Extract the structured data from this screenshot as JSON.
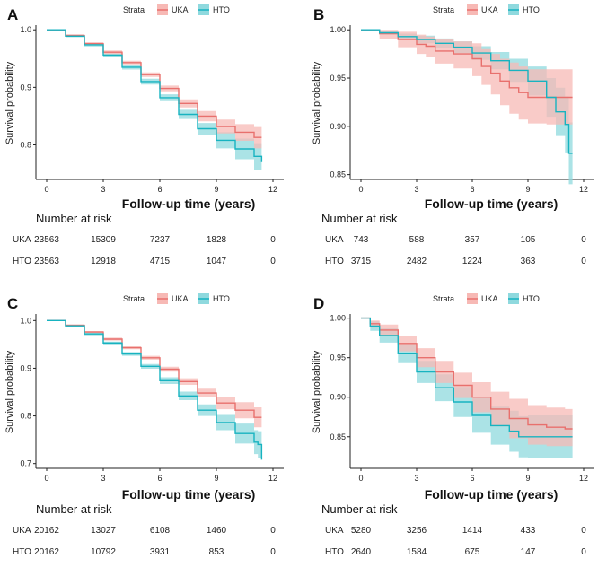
{
  "colors": {
    "uka": "#e8706d",
    "hto": "#17b3c0",
    "uka_band": "#f7b9b5",
    "hto_band": "#8fd9de"
  },
  "legend": {
    "title": "Strata",
    "uka": "UKA",
    "hto": "HTO"
  },
  "risk_table": {
    "title": "Number at risk"
  },
  "chart_data": [
    {
      "panel": "A",
      "type": "line",
      "title": "",
      "xlabel": "Follow-up time (years)",
      "ylabel": "Survival probability",
      "xlim": [
        0,
        12
      ],
      "ylim": [
        0.74,
        1.005
      ],
      "xticks": [
        "0",
        "3",
        "6",
        "9",
        "12"
      ],
      "yticks": [
        "0.8",
        "0.9",
        "1.0"
      ],
      "series": [
        {
          "name": "UKA",
          "x": [
            0,
            1,
            2,
            3,
            4,
            5,
            6,
            7,
            8,
            9,
            10,
            11,
            11.4
          ],
          "y": [
            1.0,
            0.99,
            0.976,
            0.961,
            0.943,
            0.922,
            0.898,
            0.872,
            0.85,
            0.832,
            0.822,
            0.813,
            0.813
          ],
          "lower": [
            1.0,
            0.988,
            0.974,
            0.958,
            0.94,
            0.918,
            0.893,
            0.865,
            0.841,
            0.82,
            0.807,
            0.794,
            0.792
          ],
          "upper": [
            1.0,
            0.992,
            0.978,
            0.964,
            0.946,
            0.926,
            0.903,
            0.879,
            0.859,
            0.844,
            0.836,
            0.831,
            0.832
          ]
        },
        {
          "name": "HTO",
          "x": [
            0,
            1,
            2,
            3,
            4,
            5,
            6,
            7,
            8,
            9,
            10,
            11,
            11.4
          ],
          "y": [
            1.0,
            0.989,
            0.974,
            0.956,
            0.935,
            0.91,
            0.882,
            0.853,
            0.828,
            0.808,
            0.793,
            0.78,
            0.77
          ],
          "lower": [
            1.0,
            0.987,
            0.971,
            0.953,
            0.931,
            0.905,
            0.876,
            0.845,
            0.818,
            0.794,
            0.775,
            0.757,
            0.745
          ],
          "upper": [
            1.0,
            0.991,
            0.977,
            0.959,
            0.939,
            0.915,
            0.888,
            0.861,
            0.838,
            0.822,
            0.811,
            0.803,
            0.796
          ]
        }
      ],
      "risk": {
        "UKA": [
          "23563",
          "15309",
          "7237",
          "1828",
          "0"
        ],
        "HTO": [
          "23563",
          "12918",
          "4715",
          "1047",
          "0"
        ]
      }
    },
    {
      "panel": "B",
      "type": "line",
      "title": "",
      "xlabel": "Follow-up time (years)",
      "ylabel": "Survival probability",
      "xlim": [
        0,
        12
      ],
      "ylim": [
        0.845,
        1.003
      ],
      "xticks": [
        "0",
        "3",
        "6",
        "9",
        "12"
      ],
      "yticks": [
        "0.85",
        "0.90",
        "0.95",
        "1.00"
      ],
      "series": [
        {
          "name": "UKA",
          "x": [
            0,
            1,
            2,
            3,
            3.5,
            4,
            5,
            6,
            6.5,
            7,
            7.5,
            8,
            8.5,
            9,
            10,
            11,
            11.4
          ],
          "y": [
            1.0,
            0.996,
            0.99,
            0.985,
            0.983,
            0.978,
            0.975,
            0.97,
            0.962,
            0.955,
            0.947,
            0.94,
            0.935,
            0.93,
            0.93,
            0.93,
            0.93
          ],
          "lower": [
            1.0,
            0.99,
            0.982,
            0.975,
            0.972,
            0.965,
            0.96,
            0.952,
            0.943,
            0.933,
            0.922,
            0.913,
            0.907,
            0.903,
            0.902,
            0.902,
            0.902
          ],
          "upper": [
            1.0,
            1.0,
            0.998,
            0.995,
            0.993,
            0.99,
            0.988,
            0.986,
            0.98,
            0.975,
            0.97,
            0.966,
            0.962,
            0.959,
            0.959,
            0.959,
            0.959
          ]
        },
        {
          "name": "HTO",
          "x": [
            0,
            1,
            2,
            3,
            4,
            5,
            6,
            7,
            8,
            9,
            10,
            10.5,
            11,
            11.2,
            11.4
          ],
          "y": [
            1.0,
            0.997,
            0.993,
            0.99,
            0.986,
            0.982,
            0.976,
            0.968,
            0.958,
            0.947,
            0.93,
            0.915,
            0.902,
            0.872,
            0.872
          ],
          "lower": [
            1.0,
            0.995,
            0.99,
            0.986,
            0.981,
            0.976,
            0.969,
            0.959,
            0.946,
            0.932,
            0.91,
            0.89,
            0.873,
            0.84,
            0.84
          ],
          "upper": [
            1.0,
            0.999,
            0.996,
            0.994,
            0.991,
            0.988,
            0.983,
            0.977,
            0.97,
            0.962,
            0.95,
            0.94,
            0.931,
            0.904,
            0.904
          ]
        }
      ],
      "risk": {
        "UKA": [
          "743",
          "588",
          "357",
          "105",
          "0"
        ],
        "HTO": [
          "3715",
          "2482",
          "1224",
          "363",
          "0"
        ]
      }
    },
    {
      "panel": "C",
      "type": "line",
      "title": "",
      "xlabel": "Follow-up time (years)",
      "ylabel": "Survival probability",
      "xlim": [
        0,
        12
      ],
      "ylim": [
        0.69,
        1.01
      ],
      "xticks": [
        "0",
        "3",
        "6",
        "9",
        "12"
      ],
      "yticks": [
        "0.7",
        "0.8",
        "0.9",
        "1.0"
      ],
      "series": [
        {
          "name": "UKA",
          "x": [
            0,
            1,
            2,
            3,
            4,
            5,
            6,
            7,
            8,
            9,
            10,
            11,
            11.4
          ],
          "y": [
            1.0,
            0.99,
            0.976,
            0.961,
            0.943,
            0.922,
            0.898,
            0.872,
            0.848,
            0.827,
            0.812,
            0.797,
            0.797
          ],
          "lower": [
            1.0,
            0.988,
            0.974,
            0.958,
            0.94,
            0.918,
            0.893,
            0.865,
            0.839,
            0.814,
            0.795,
            0.776,
            0.774
          ],
          "upper": [
            1.0,
            0.992,
            0.978,
            0.964,
            0.946,
            0.926,
            0.903,
            0.879,
            0.857,
            0.84,
            0.829,
            0.818,
            0.82
          ]
        },
        {
          "name": "HTO",
          "x": [
            0,
            1,
            2,
            3,
            4,
            5,
            6,
            7,
            8,
            9,
            10,
            11,
            11.2,
            11.4
          ],
          "y": [
            1.0,
            0.989,
            0.972,
            0.953,
            0.93,
            0.904,
            0.874,
            0.842,
            0.812,
            0.786,
            0.763,
            0.745,
            0.74,
            0.708
          ],
          "lower": [
            1.0,
            0.987,
            0.969,
            0.95,
            0.926,
            0.899,
            0.867,
            0.833,
            0.8,
            0.77,
            0.742,
            0.72,
            0.712,
            0.69
          ],
          "upper": [
            1.0,
            0.991,
            0.975,
            0.956,
            0.934,
            0.909,
            0.881,
            0.851,
            0.824,
            0.802,
            0.784,
            0.77,
            0.768,
            0.74
          ]
        }
      ],
      "risk": {
        "UKA": [
          "20162",
          "13027",
          "6108",
          "1460",
          "0"
        ],
        "HTO": [
          "20162",
          "10792",
          "3931",
          "853",
          "0"
        ]
      }
    },
    {
      "panel": "D",
      "type": "line",
      "title": "",
      "xlabel": "Follow-up time (years)",
      "ylabel": "Survival probability",
      "xlim": [
        0,
        12
      ],
      "ylim": [
        0.81,
        1.003
      ],
      "xticks": [
        "0",
        "3",
        "6",
        "9",
        "12"
      ],
      "yticks": [
        "0.85",
        "0.90",
        "0.95",
        "1.00"
      ],
      "series": [
        {
          "name": "UKA",
          "x": [
            0,
            0.5,
            1,
            2,
            3,
            4,
            5,
            6,
            7,
            8,
            9,
            10,
            11,
            11.4
          ],
          "y": [
            1.0,
            0.993,
            0.985,
            0.968,
            0.95,
            0.932,
            0.915,
            0.9,
            0.885,
            0.873,
            0.865,
            0.862,
            0.86,
            0.86
          ],
          "lower": [
            1.0,
            0.988,
            0.978,
            0.958,
            0.938,
            0.918,
            0.899,
            0.881,
            0.863,
            0.848,
            0.84,
            0.838,
            0.838,
            0.838
          ],
          "upper": [
            1.0,
            0.997,
            0.992,
            0.978,
            0.962,
            0.946,
            0.931,
            0.919,
            0.907,
            0.898,
            0.89,
            0.887,
            0.885,
            0.885
          ]
        },
        {
          "name": "HTO",
          "x": [
            0,
            0.5,
            1,
            2,
            3,
            4,
            5,
            6,
            7,
            8,
            8.5,
            9,
            10,
            11,
            11.4
          ],
          "y": [
            1.0,
            0.99,
            0.978,
            0.955,
            0.932,
            0.912,
            0.894,
            0.877,
            0.864,
            0.857,
            0.85,
            0.85,
            0.85,
            0.85,
            0.85
          ],
          "lower": [
            1.0,
            0.984,
            0.969,
            0.943,
            0.918,
            0.895,
            0.875,
            0.855,
            0.84,
            0.831,
            0.824,
            0.823,
            0.823,
            0.823,
            0.823
          ],
          "upper": [
            1.0,
            0.996,
            0.987,
            0.967,
            0.946,
            0.929,
            0.913,
            0.899,
            0.888,
            0.883,
            0.876,
            0.877,
            0.877,
            0.877,
            0.877
          ]
        }
      ],
      "risk": {
        "UKA": [
          "5280",
          "3256",
          "1414",
          "433",
          "0"
        ],
        "HTO": [
          "2640",
          "1584",
          "675",
          "147",
          "0"
        ]
      }
    }
  ]
}
